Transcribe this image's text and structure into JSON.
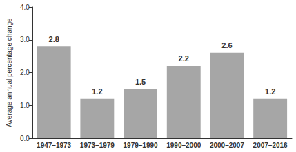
{
  "chart_data": {
    "type": "bar",
    "ylabel": "Average annual percentage change",
    "categories": [
      "1947–1973",
      "1973–1979",
      "1979–1990",
      "1990–2000",
      "2000–2007",
      "2007–2016"
    ],
    "values": [
      2.8,
      1.2,
      1.5,
      2.2,
      2.6,
      1.2
    ],
    "color": "#a6a6a6",
    "ylim": [
      0,
      4
    ],
    "yticks": [
      {
        "value": 0,
        "label": "0.0"
      },
      {
        "value": 1,
        "label": "1.0"
      },
      {
        "value": 2,
        "label": "2.0"
      },
      {
        "value": 3,
        "label": "3.0"
      },
      {
        "value": 4,
        "label": "4.0"
      }
    ],
    "grid": false,
    "data_labels": true
  }
}
